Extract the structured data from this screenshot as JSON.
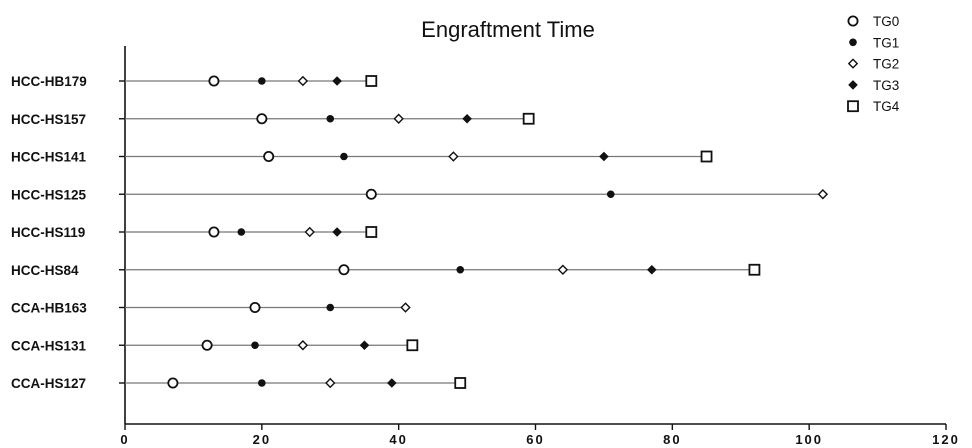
{
  "chart_data": {
    "type": "scatter",
    "title": "Engraftment Time",
    "xlabel": "",
    "ylabel": "",
    "xlim": [
      0,
      120
    ],
    "x_ticks": [
      0,
      20,
      40,
      60,
      80,
      100,
      120
    ],
    "grid": false,
    "legend_position": "top-right",
    "categories": [
      "HCC-HB179",
      "HCC-HS157",
      "HCC-HS141",
      "HCC-HS125",
      "HCC-HS119",
      "HCC-HS84",
      "CCA-HB163",
      "CCA-HS131",
      "CCA-HS127"
    ],
    "series": [
      {
        "name": "TG0",
        "marker": "open-circle",
        "values": [
          13,
          20,
          21,
          36,
          13,
          32,
          19,
          12,
          7
        ]
      },
      {
        "name": "TG1",
        "marker": "filled-dot",
        "values": [
          20,
          30,
          32,
          71,
          17,
          49,
          30,
          19,
          20
        ]
      },
      {
        "name": "TG2",
        "marker": "open-diamond",
        "values": [
          26,
          40,
          48,
          102,
          27,
          64,
          41,
          26,
          30
        ]
      },
      {
        "name": "TG3",
        "marker": "filled-diamond",
        "values": [
          31,
          50,
          70,
          null,
          31,
          77,
          null,
          35,
          39
        ]
      },
      {
        "name": "TG4",
        "marker": "open-square",
        "values": [
          36,
          59,
          85,
          null,
          36,
          92,
          null,
          42,
          49
        ]
      }
    ]
  }
}
